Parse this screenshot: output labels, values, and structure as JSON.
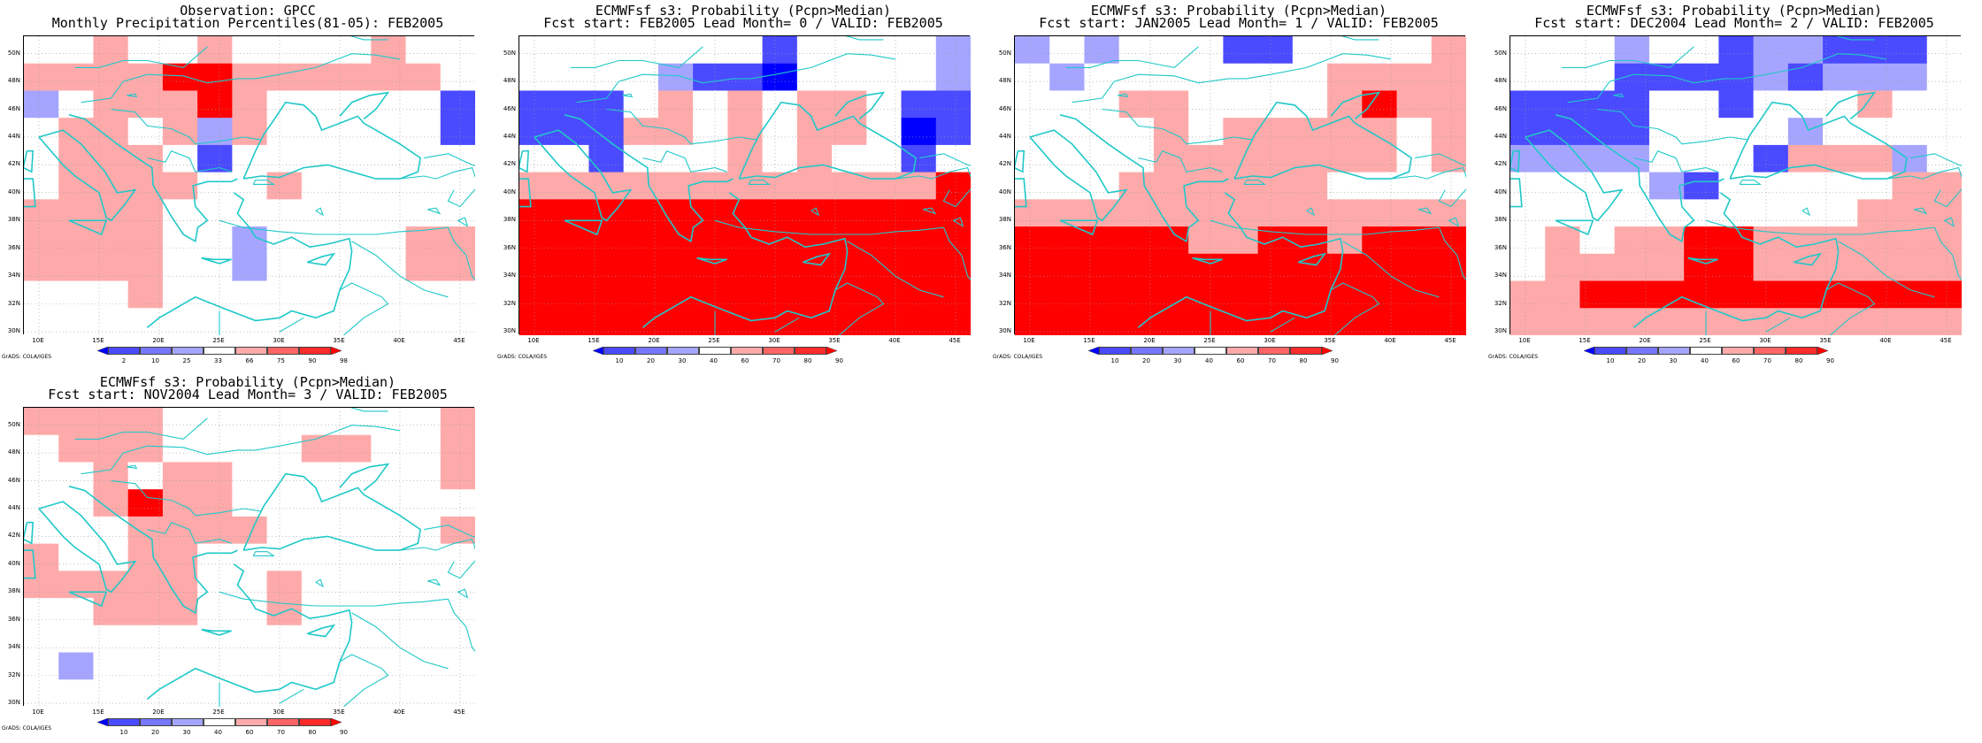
{
  "credit_text": "GrADS: COLA/IGES",
  "lat_labels": [
    "50N",
    "48N",
    "46N",
    "44N",
    "42N",
    "40N",
    "38N",
    "36N",
    "34N",
    "32N",
    "30N"
  ],
  "lon_labels": [
    "10E",
    "15E",
    "20E",
    "25E",
    "30E",
    "35E",
    "40E",
    "45E"
  ],
  "colors": {
    "blue_dark": "#0000ff",
    "blue_mid": "#4a4aff",
    "blue_light": "#a5a5ff",
    "white": "#ffffff",
    "red_light": "#ffaaaa",
    "red_mid": "#ff6565",
    "red_dark": "#ff2a2a",
    "red_max": "#ff0000",
    "coast": "#20c8c8"
  },
  "panels": [
    {
      "title_line1": "Observation: GPCC",
      "title_line2": "Monthly Precipitation Percentiles(81-05): FEB2005",
      "colorbar_labels": [
        "2",
        "10",
        "25",
        "33",
        "66",
        "75",
        "90",
        "98"
      ],
      "grid": [
        "4454454444544",
        "5555665555554",
        "3455565444442",
        "4554535444442",
        "4555424444444",
        "4555544544444",
        "5555444444444",
        "5555443444455",
        "5555443444455",
        "4445444444444",
        "4444444444444"
      ]
    },
    {
      "title_line1": "ECMWFsf s3: Probability (Pcpn>Median)",
      "title_line2": "Fcst start: FEB2005   Lead Month= 0 / VALID: FEB2005",
      "colorbar_labels": [
        "10",
        "20",
        "30",
        "40",
        "60",
        "70",
        "80",
        "90"
      ],
      "grid": [
        "4444444244443",
        "4444322044443",
        "1124545455422",
        "1215545455402",
        "4424445454424",
        "5555555555556",
        "6666666666666",
        "6666666666666",
        "6666666666666",
        "6666666666666",
        "6666666666666"
      ]
    },
    {
      "title_line1": "ECMWFsf s3: Probability (Pcpn>Median)",
      "title_line2": "Fcst start: JAN2005   Lead Month= 1 / VALID: FEB2005",
      "colorbar_labels": [
        "10",
        "20",
        "30",
        "40",
        "60",
        "70",
        "80",
        "90"
      ],
      "grid": [
        "3434442244445",
        "4344444445555",
        "4445544445655",
        "4444545555545",
        "4444555555545",
        "4445555554444",
        "5555555555555",
        "6666655665666",
        "6666666666666",
        "6666666666666",
        "6666666666666"
      ]
    },
    {
      "title_line1": "ECMWFsf s3: Probability (Pcpn>Median)",
      "title_line2": "Fcst start: DEC2004   Lead Month= 2 / VALID: FEB2005",
      "colorbar_labels": [
        "10",
        "20",
        "30",
        "40",
        "60",
        "70",
        "80",
        "90"
      ],
      "grid": [
        "4443442332224",
        "4442222323334",
        "2222442444544",
        "2222444434444",
        "3333444255534",
        "4444324444455",
        "4444444444555",
        "4545566555555",
        "4555566555555",
        "5566666666666",
        "5555555555555"
      ]
    },
    {
      "title_line1": "ECMWFsf s3: Probability (Pcpn>Median)",
      "title_line2": "Fcst start: NOV2004   Lead Month= 3 / VALID: FEB2005",
      "colorbar_labels": [
        "10",
        "20",
        "30",
        "40",
        "60",
        "70",
        "80",
        "90"
      ],
      "grid": [
        "5555444444445",
        "4555444455445",
        "4454554444445",
        "4456554444444",
        "4445555444445",
        "5445544444444",
        "5555544544444",
        "4455544544444",
        "4444444444444",
        "4344444444444",
        "4444444444444"
      ]
    }
  ]
}
